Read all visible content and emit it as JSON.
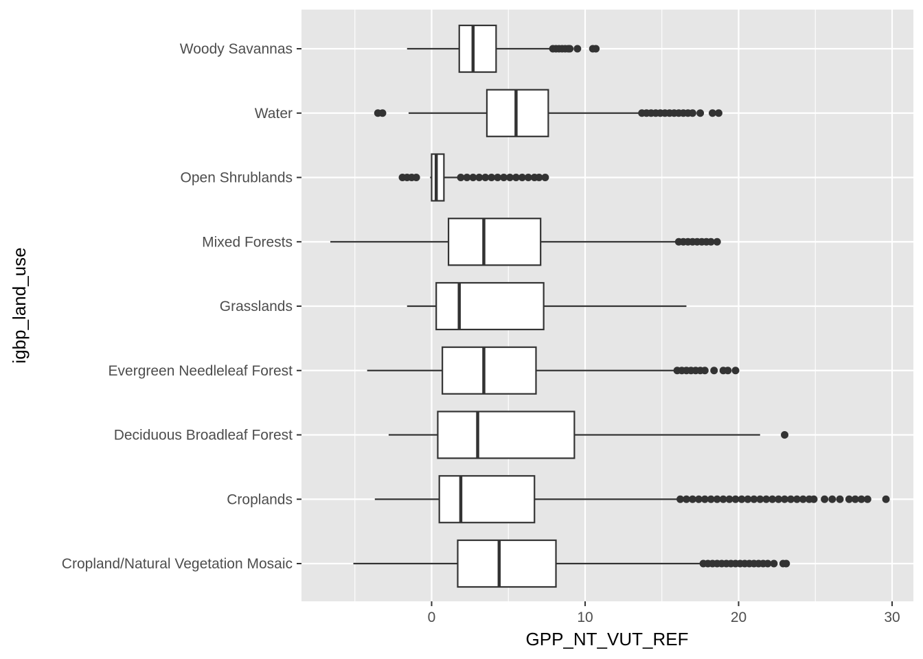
{
  "chart_data": {
    "type": "boxplot",
    "orientation": "horizontal",
    "xlabel": "GPP_NT_VUT_REF",
    "ylabel": "igbp_land_use",
    "xlim": [
      -8.5,
      31.3
    ],
    "x_ticks": [
      0,
      10,
      20,
      30
    ],
    "x_tick_labels": [
      "0",
      "10",
      "20",
      "30"
    ],
    "grid": true,
    "colors": {
      "panel": "#e6e6e6",
      "grid": "#ffffff",
      "box_fill": "#ffffff",
      "stroke": "#333333"
    },
    "categories": [
      "Woody Savannas",
      "Water",
      "Open Shrublands",
      "Mixed Forests",
      "Grasslands",
      "Evergreen Needleleaf Forest",
      "Deciduous Broadleaf Forest",
      "Croplands",
      "Cropland/Natural Vegetation Mosaic"
    ],
    "boxes": [
      {
        "name": "Woody Savannas",
        "whisker_low": -1.6,
        "q1": 1.8,
        "median": 2.7,
        "q3": 4.2,
        "whisker_high": 7.8,
        "outliers": [
          7.9,
          8.1,
          8.3,
          8.5,
          8.7,
          8.9,
          9.0,
          9.5,
          10.5,
          10.7
        ]
      },
      {
        "name": "Water",
        "whisker_low": -1.5,
        "q1": 3.6,
        "median": 5.5,
        "q3": 7.6,
        "whisker_high": 13.6,
        "outliers": [
          -3.5,
          -3.2,
          13.7,
          14.0,
          14.3,
          14.6,
          14.9,
          15.2,
          15.5,
          15.8,
          16.1,
          16.4,
          16.7,
          17.0,
          17.5,
          18.3,
          18.7
        ]
      },
      {
        "name": "Open Shrublands",
        "whisker_low": -0.1,
        "q1": 0.0,
        "median": 0.3,
        "q3": 0.8,
        "whisker_high": 1.8,
        "outliers": [
          -1.9,
          -1.6,
          -1.3,
          -1.0,
          1.9,
          2.3,
          2.7,
          3.1,
          3.5,
          3.9,
          4.3,
          4.7,
          5.1,
          5.5,
          5.9,
          6.3,
          6.7,
          7.0,
          7.4
        ]
      },
      {
        "name": "Mixed Forests",
        "whisker_low": -6.6,
        "q1": 1.1,
        "median": 3.4,
        "q3": 7.1,
        "whisker_high": 16.0,
        "outliers": [
          16.1,
          16.4,
          16.7,
          17.0,
          17.3,
          17.6,
          17.9,
          18.2,
          18.6
        ]
      },
      {
        "name": "Grasslands",
        "whisker_low": -1.6,
        "q1": 0.3,
        "median": 1.8,
        "q3": 7.3,
        "whisker_high": 16.6,
        "outliers": []
      },
      {
        "name": "Evergreen Needleleaf Forest",
        "whisker_low": -4.2,
        "q1": 0.7,
        "median": 3.4,
        "q3": 6.8,
        "whisker_high": 15.9,
        "outliers": [
          16.0,
          16.3,
          16.6,
          16.9,
          17.2,
          17.5,
          17.8,
          18.4,
          19.0,
          19.3,
          19.8
        ]
      },
      {
        "name": "Deciduous Broadleaf Forest",
        "whisker_low": -2.8,
        "q1": 0.4,
        "median": 3.0,
        "q3": 9.3,
        "whisker_high": 21.4,
        "outliers": [
          23.0
        ]
      },
      {
        "name": "Croplands",
        "whisker_low": -3.7,
        "q1": 0.5,
        "median": 1.9,
        "q3": 6.7,
        "whisker_high": 16.0,
        "outliers": [
          16.2,
          16.6,
          17.0,
          17.4,
          17.8,
          18.2,
          18.6,
          19.0,
          19.4,
          19.8,
          20.2,
          20.6,
          21.0,
          21.4,
          21.8,
          22.2,
          22.6,
          23.0,
          23.4,
          23.8,
          24.2,
          24.6,
          24.9,
          25.6,
          26.1,
          26.6,
          27.2,
          27.6,
          28.0,
          28.4,
          29.6
        ]
      },
      {
        "name": "Cropland/Natural Vegetation Mosaic",
        "whisker_low": -5.1,
        "q1": 1.7,
        "median": 4.4,
        "q3": 8.1,
        "whisker_high": 17.6,
        "outliers": [
          17.7,
          18.0,
          18.3,
          18.6,
          18.9,
          19.2,
          19.5,
          19.8,
          20.1,
          20.4,
          20.7,
          21.0,
          21.3,
          21.6,
          21.9,
          22.3,
          22.9,
          23.1
        ]
      }
    ]
  }
}
